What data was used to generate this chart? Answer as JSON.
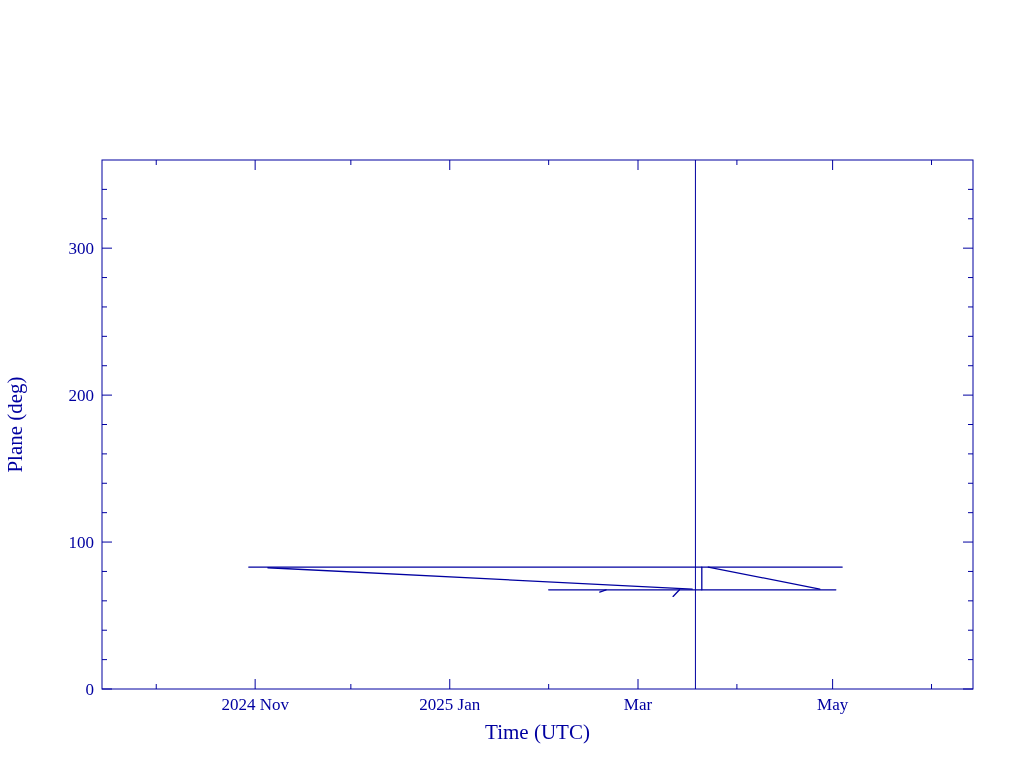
{
  "chart_data": {
    "type": "line",
    "xlabel": "Time (UTC)",
    "ylabel": "Plane (deg)",
    "series": [
      {
        "color": "#0000a0",
        "x": [
          "2024-10-30",
          "2025-05-04"
        ],
        "values": [
          83,
          83
        ]
      },
      {
        "color": "#0000a0",
        "x": [
          "2024-11-05",
          "2025-03-18"
        ],
        "values": [
          82.5,
          68
        ]
      },
      {
        "color": "#0000a0",
        "x": [
          "2025-02-01",
          "2025-05-02"
        ],
        "values": [
          67.5,
          67.5
        ]
      },
      {
        "color": "#0000a0",
        "x": [
          "2025-03-21",
          "2025-03-21"
        ],
        "values": [
          83,
          67.5
        ]
      },
      {
        "color": "#0000a0",
        "x": [
          "2025-03-23",
          "2025-04-27"
        ],
        "values": [
          83,
          68
        ]
      },
      {
        "color": "#0000a0",
        "x": [
          "2025-02-17",
          "2025-02-19"
        ],
        "values": [
          66,
          67.5
        ]
      },
      {
        "color": "#0000a0",
        "x": [
          "2025-03-12",
          "2025-03-14"
        ],
        "values": [
          63,
          67.5
        ]
      }
    ],
    "xlim": [
      "2024-09-14",
      "2025-06-14"
    ],
    "xticks": [
      {
        "value": "2024-10-01",
        "label": null
      },
      {
        "value": "2024-11-01",
        "label": "2024 Nov"
      },
      {
        "value": "2024-12-01",
        "label": null
      },
      {
        "value": "2025-01-01",
        "label": "2025 Jan"
      },
      {
        "value": "2025-02-01",
        "label": null
      },
      {
        "value": "2025-03-01",
        "label": "Mar"
      },
      {
        "value": "2025-04-01",
        "label": null
      },
      {
        "value": "2025-05-01",
        "label": "May"
      },
      {
        "value": "2025-06-01",
        "label": null
      }
    ],
    "ylim": [
      0,
      360
    ],
    "yticks": [
      0,
      {
        "value": 20,
        "label": null
      },
      {
        "value": 40,
        "label": null
      },
      {
        "value": 60,
        "label": null
      },
      {
        "value": 80,
        "label": null
      },
      100,
      {
        "value": 120,
        "label": null
      },
      {
        "value": 140,
        "label": null
      },
      {
        "value": 160,
        "label": null
      },
      {
        "value": 180,
        "label": null
      },
      200,
      {
        "value": 220,
        "label": null
      },
      {
        "value": 240,
        "label": null
      },
      {
        "value": 260,
        "label": null
      },
      {
        "value": 280,
        "label": null
      },
      300,
      {
        "value": 320,
        "label": null
      },
      {
        "value": 340,
        "label": null
      }
    ],
    "ref_lines": [
      {
        "axis": "x",
        "value": "2025-03-19",
        "color": "#0000a0"
      }
    ],
    "marker": "none",
    "line_style": "solid"
  }
}
